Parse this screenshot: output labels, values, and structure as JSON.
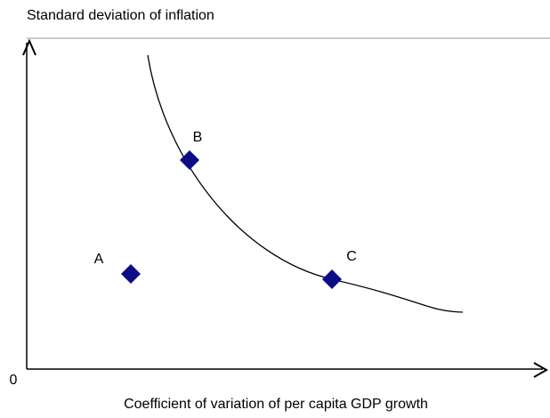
{
  "y_axis_label": "Standard deviation of inflation",
  "x_axis_label": "Coefficient of variation of per capita GDP growth",
  "origin_label": "0",
  "points": [
    {
      "label": "A"
    },
    {
      "label": "B"
    },
    {
      "label": "C"
    }
  ]
}
